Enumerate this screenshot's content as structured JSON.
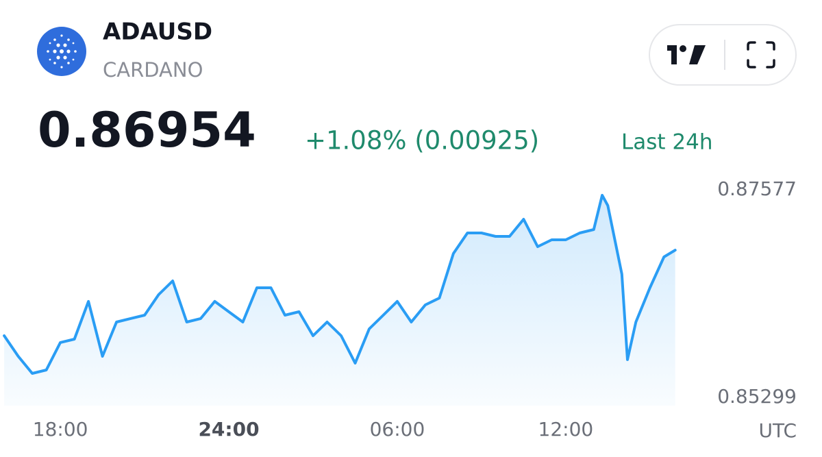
{
  "chart_data": {
    "type": "area",
    "title": "ADAUSD",
    "subtitle": "CARDANO",
    "last_price": "0.86954",
    "change": "+1.08% (0.00925)",
    "period": "Last 24h",
    "timezone": "UTC",
    "color": "#2a9df4",
    "change_color": "#1f8a6c",
    "grid": false,
    "x": [
      16,
      16.5,
      17,
      17.5,
      18,
      18.5,
      19,
      19.5,
      20,
      20.5,
      21,
      21.5,
      22,
      22.5,
      23,
      23.5,
      24,
      24.5,
      25,
      25.5,
      26,
      26.5,
      27,
      27.5,
      28,
      28.5,
      29,
      29.5,
      30,
      30.5,
      31,
      31.5,
      32,
      32.5,
      33,
      33.5,
      34,
      34.5,
      35,
      35.5,
      36,
      36.5,
      37,
      37.3,
      37.5,
      38,
      38.2,
      38.5,
      39,
      39.5,
      39.9
    ],
    "values": [
      0.85976,
      0.8575,
      0.85562,
      0.856,
      0.85901,
      0.85938,
      0.86352,
      0.8575,
      0.86126,
      0.86164,
      0.86201,
      0.86427,
      0.86577,
      0.86126,
      0.86164,
      0.86352,
      0.86239,
      0.86126,
      0.86502,
      0.86502,
      0.86201,
      0.86239,
      0.85976,
      0.86126,
      0.85976,
      0.85675,
      0.86051,
      0.86201,
      0.86352,
      0.86126,
      0.86314,
      0.86389,
      0.86878,
      0.87103,
      0.87103,
      0.87066,
      0.87066,
      0.87254,
      0.86953,
      0.87028,
      0.87028,
      0.87103,
      0.87141,
      0.87517,
      0.87404,
      0.86652,
      0.85713,
      0.86126,
      0.86502,
      0.8684,
      0.86915
    ],
    "xlim": [
      15.85,
      40.2
    ],
    "xticks": [
      {
        "value": 18,
        "label": "18:00"
      },
      {
        "value": 24,
        "label": "24:00"
      },
      {
        "value": 30,
        "label": "06:00"
      },
      {
        "value": 36,
        "label": "12:00"
      }
    ],
    "ylim": [
      0.85299,
      0.87577
    ],
    "yticks": [
      0.87577,
      0.85299
    ]
  }
}
